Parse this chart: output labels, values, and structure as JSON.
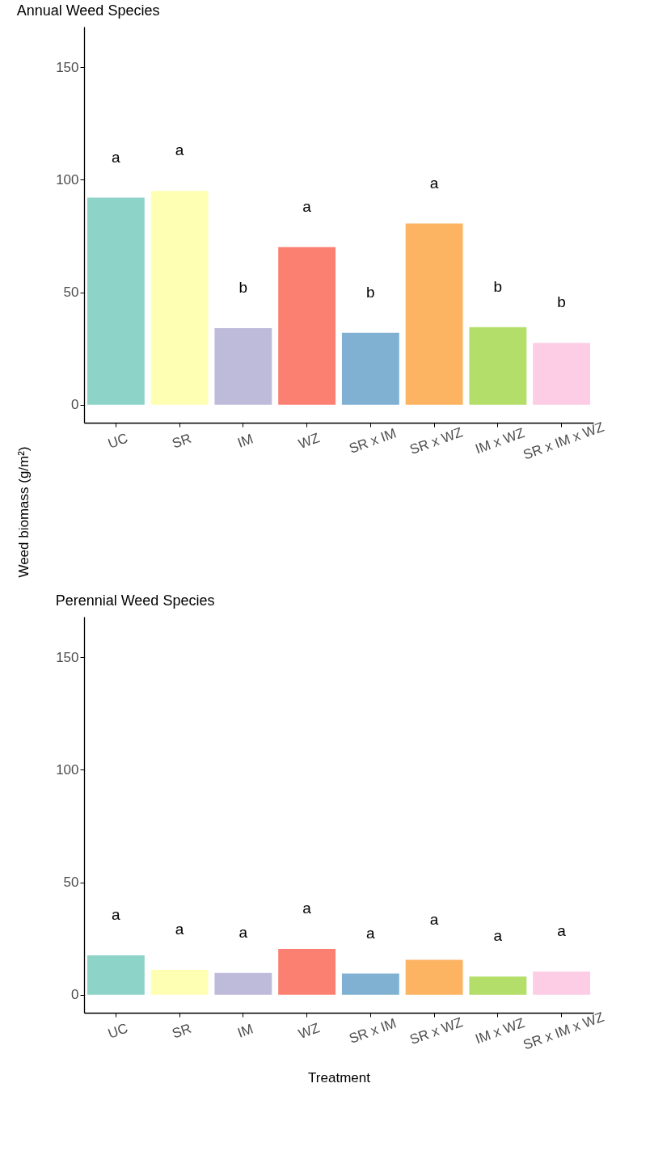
{
  "chart_data": [
    {
      "type": "bar",
      "title": "Annual Weed Species",
      "ylabel": "Weed biomass (g/m²)",
      "categories": [
        "UC",
        "SR",
        "IM",
        "WZ",
        "SR x IM",
        "SR x WZ",
        "IM x WZ",
        "SR x IM x WZ"
      ],
      "values": [
        92,
        95,
        34,
        70,
        32,
        80.5,
        34.5,
        27.5
      ],
      "colors": [
        "#8dd3c7",
        "#ffffb3",
        "#bebada",
        "#fb8072",
        "#80b1d3",
        "#fdb462",
        "#b3de69",
        "#fccde5"
      ],
      "ylim": [
        -8,
        168
      ],
      "yticks": [
        0,
        50,
        100,
        150
      ],
      "annotations": [
        "a",
        "a",
        "b",
        "a",
        "b",
        "a",
        "b",
        "b"
      ]
    },
    {
      "type": "bar",
      "title": "Perennial Weed Species",
      "xlabel": "Treatment",
      "categories": [
        "UC",
        "SR",
        "IM",
        "WZ",
        "SR x IM",
        "SR x WZ",
        "IM x WZ",
        "SR x IM x WZ"
      ],
      "values": [
        17.5,
        11,
        9.7,
        20.4,
        9.4,
        15.5,
        8.1,
        10.3
      ],
      "colors": [
        "#8dd3c7",
        "#ffffb3",
        "#bebada",
        "#fb8072",
        "#80b1d3",
        "#fdb462",
        "#b3de69",
        "#fccde5"
      ],
      "ylim": [
        -8,
        168
      ],
      "yticks": [
        0,
        50,
        100,
        150
      ],
      "annotations": [
        "a",
        "a",
        "a",
        "a",
        "a",
        "a",
        "a",
        "a"
      ]
    }
  ]
}
